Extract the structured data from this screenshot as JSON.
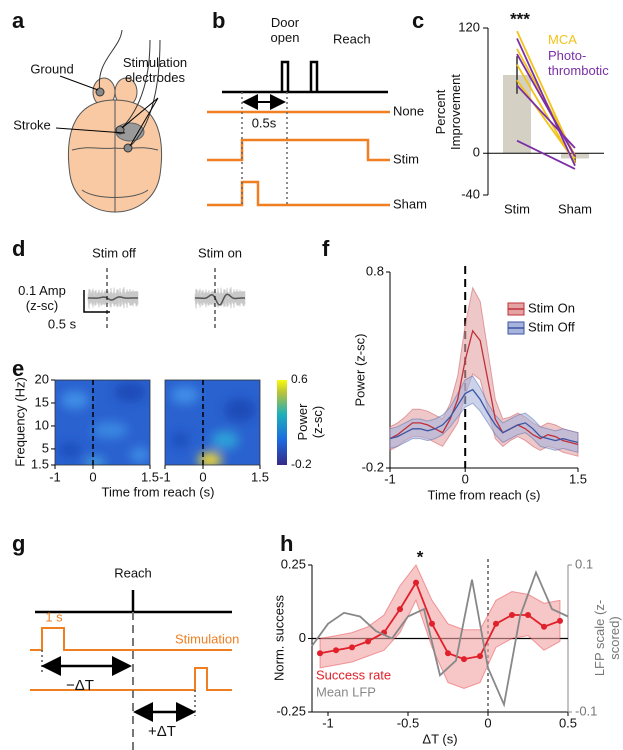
{
  "panel_labels": [
    "a",
    "b",
    "c",
    "d",
    "e",
    "f",
    "g",
    "h"
  ],
  "panel_a": {
    "ground": "Ground",
    "electrodes": "Stimulation electrodes",
    "stroke": "Stroke"
  },
  "panel_b": {
    "door": "Door open",
    "reach": "Reach",
    "interval": "0.5s",
    "none": "None",
    "stim": "Stim",
    "sham": "Sham"
  },
  "panel_d": {
    "off": "Stim off",
    "on": "Stim on",
    "amp": "0.1 Amp (z-sc)",
    "time": "0.5 s"
  },
  "panel_g": {
    "reach": "Reach",
    "duration": "1 s",
    "stimulation": "Stimulation",
    "minus": "−ΔT",
    "plus": "+ΔT"
  },
  "chart_data": [
    {
      "type": "bar",
      "ylabel": "Percent Improvement",
      "annotation": "***",
      "categories": [
        "Stim",
        "Sham"
      ],
      "values": [
        75,
        -5
      ],
      "errors": [
        18,
        4
      ],
      "color": "#d4d1c4",
      "ylim": [
        -40,
        120
      ],
      "yticks": [
        120,
        0,
        -40
      ],
      "series": [
        {
          "name": "MCA",
          "color": "#f0c419",
          "lines": [
            [
              117,
              -5
            ],
            [
              100,
              -2
            ],
            [
              85,
              -10
            ],
            [
              70,
              -8
            ]
          ]
        },
        {
          "name": "Photo-thrombotic",
          "color": "#7b2fa6",
          "lines": [
            [
              110,
              -12
            ],
            [
              95,
              -3
            ],
            [
              65,
              5
            ],
            [
              12,
              -15
            ]
          ]
        }
      ]
    },
    {
      "type": "heatmap",
      "ylabel": "Frequency (Hz)",
      "xlabel": "Time from reach (s)",
      "xlim": [
        -1,
        1.5
      ],
      "xticks": [
        -1,
        0,
        1.5
      ],
      "ylim": [
        1.5,
        20
      ],
      "yticks": [
        20,
        15,
        10,
        5,
        1.5
      ],
      "vline": 0,
      "colorbar_label": "Power (z-sc)",
      "clim": [
        -0.2,
        0.6
      ],
      "cticks": [
        0.6,
        -0.2
      ]
    },
    {
      "type": "line",
      "ylabel": "Power (z-sc)",
      "xlabel": "Time from reach (s)",
      "xlim": [
        -1,
        1.5
      ],
      "xticks": [
        -1,
        0,
        1.5
      ],
      "ylim": [
        -0.2,
        0.8
      ],
      "yticks": [
        0.8,
        -0.2
      ],
      "vline": 0,
      "x": [
        -1,
        -0.9,
        -0.8,
        -0.7,
        -0.6,
        -0.5,
        -0.4,
        -0.3,
        -0.2,
        -0.1,
        0,
        0.1,
        0.2,
        0.3,
        0.4,
        0.5,
        0.6,
        0.7,
        0.8,
        0.9,
        1,
        1.1,
        1.2,
        1.3,
        1.4,
        1.5
      ],
      "series": [
        {
          "name": "Stim On",
          "color": "#c0303a",
          "band_color": "#e3a3a3",
          "values": [
            -0.05,
            -0.03,
            0,
            0.03,
            0.03,
            0.02,
            0,
            -0.02,
            0.05,
            0.15,
            0.35,
            0.5,
            0.45,
            0.25,
            0.05,
            -0.02,
            0,
            0.02,
            0,
            -0.03,
            -0.05,
            -0.03,
            -0.04,
            -0.06,
            -0.07,
            -0.08
          ],
          "errors": [
            0.06,
            0.06,
            0.06,
            0.07,
            0.07,
            0.07,
            0.07,
            0.07,
            0.08,
            0.12,
            0.18,
            0.22,
            0.2,
            0.15,
            0.1,
            0.07,
            0.06,
            0.06,
            0.06,
            0.06,
            0.06,
            0.06,
            0.06,
            0.06,
            0.06,
            0.06
          ]
        },
        {
          "name": "Stim Off",
          "color": "#3a55a4",
          "band_color": "#a9b4dc",
          "values": [
            -0.05,
            -0.04,
            -0.02,
            0,
            0,
            -0.01,
            0,
            0.02,
            0.06,
            0.12,
            0.18,
            0.2,
            0.15,
            0.08,
            0.02,
            -0.02,
            0,
            0.02,
            0.03,
            0,
            -0.04,
            -0.05,
            -0.06,
            -0.05,
            -0.06,
            -0.07
          ],
          "errors": [
            0.05,
            0.05,
            0.05,
            0.05,
            0.05,
            0.05,
            0.05,
            0.05,
            0.05,
            0.06,
            0.07,
            0.07,
            0.06,
            0.05,
            0.05,
            0.05,
            0.05,
            0.05,
            0.05,
            0.05,
            0.05,
            0.05,
            0.05,
            0.05,
            0.05,
            0.05
          ]
        }
      ]
    },
    {
      "type": "line",
      "ylabel": "Norm. success",
      "y2label": "LFP scale (z-scored)",
      "xlabel": "ΔT (s)",
      "annotation": "*",
      "xlim": [
        -1.1,
        0.5
      ],
      "xticks": [
        -1,
        -0.5,
        0,
        0.5
      ],
      "ylim": [
        -0.25,
        0.25
      ],
      "yticks": [
        0.25,
        0,
        -0.25
      ],
      "y2lim": [
        -0.1,
        0.1
      ],
      "y2ticks": [
        0.1,
        -0.1
      ],
      "vline": 0,
      "series": [
        {
          "name": "Success rate",
          "color": "#e0202a",
          "band_color": "#f2a0a0",
          "x": [
            -1.05,
            -0.95,
            -0.85,
            -0.75,
            -0.65,
            -0.55,
            -0.45,
            -0.35,
            -0.25,
            -0.15,
            -0.05,
            0.05,
            0.15,
            0.25,
            0.35,
            0.45
          ],
          "values": [
            -0.05,
            -0.04,
            -0.03,
            -0.01,
            0.02,
            0.1,
            0.19,
            0.05,
            -0.05,
            -0.07,
            -0.06,
            0.05,
            0.08,
            0.08,
            0.04,
            0.06
          ],
          "errors": [
            0.05,
            0.05,
            0.05,
            0.05,
            0.06,
            0.08,
            0.06,
            0.08,
            0.1,
            0.1,
            0.09,
            0.08,
            0.08,
            0.07,
            0.08,
            0.07
          ]
        },
        {
          "name": "Mean LFP",
          "color": "#888888",
          "axis": "y2",
          "x": [
            -1.1,
            -1,
            -0.9,
            -0.8,
            -0.7,
            -0.6,
            -0.5,
            -0.4,
            -0.3,
            -0.2,
            -0.1,
            0,
            0.1,
            0.2,
            0.3,
            0.4,
            0.5
          ],
          "values": [
            -0.01,
            0.02,
            0.035,
            0.03,
            0.01,
            0,
            0.03,
            0.04,
            -0.05,
            -0.03,
            0.08,
            -0.04,
            -0.09,
            0.03,
            0.09,
            0.04,
            0.03
          ]
        }
      ]
    }
  ]
}
